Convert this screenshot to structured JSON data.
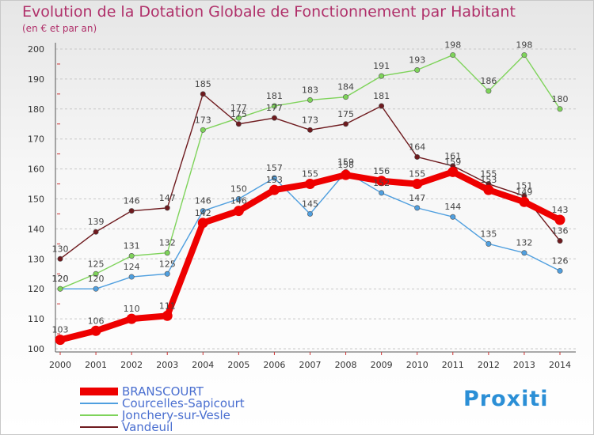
{
  "header": {
    "title": "Evolution de la Dotation Globale de Fonctionnement par Habitant",
    "subtitle": "(en € et par an)"
  },
  "branding": {
    "logo_text": "Proxiti"
  },
  "chart_data": {
    "type": "line",
    "title": "Evolution de la Dotation Globale de Fonctionnement par Habitant",
    "subtitle": "(en € et par an)",
    "xlabel": "",
    "ylabel": "",
    "ylim": [
      100,
      200
    ],
    "yticks": [
      100,
      110,
      120,
      130,
      140,
      150,
      160,
      170,
      180,
      190,
      200
    ],
    "categories": [
      "2000",
      "2001",
      "2002",
      "2003",
      "2004",
      "2005",
      "2006",
      "2007",
      "2008",
      "2009",
      "2010",
      "2011",
      "2012",
      "2013",
      "2014"
    ],
    "grid": "horizontal-dashed",
    "legend_position": "bottom-left",
    "series": [
      {
        "name": "BRANSCOURT",
        "color": "#ee0000",
        "emphasis": true,
        "values": [
          103,
          106,
          110,
          111,
          142,
          146,
          153,
          155,
          158,
          156,
          155,
          159,
          153,
          149,
          143
        ],
        "labels": [
          "103",
          "106",
          "110",
          "111",
          "142",
          "146",
          "153",
          "155",
          "158",
          "156",
          "155",
          "159",
          "153",
          "149",
          "143"
        ]
      },
      {
        "name": "Courcelles-Sapicourt",
        "color": "#4f9fdf",
        "values": [
          120,
          120,
          124,
          125,
          146,
          150,
          157,
          145,
          159,
          152,
          147,
          144,
          135,
          132,
          126
        ],
        "labels": [
          "120",
          "120",
          "124",
          "125",
          "146",
          "150",
          "157",
          "145",
          "159",
          "152",
          "147",
          "144",
          "135",
          "132",
          "126"
        ]
      },
      {
        "name": "Jonchery-sur-Vesle",
        "color": "#7ed35a",
        "values": [
          120,
          125,
          131,
          132,
          173,
          177,
          181,
          183,
          184,
          191,
          193,
          198,
          186,
          198,
          180
        ],
        "labels": [
          "120",
          "125",
          "131",
          "132",
          "173",
          "177",
          "181",
          "183",
          "184",
          "191",
          "193",
          "198",
          "186",
          "198",
          "180"
        ]
      },
      {
        "name": "Vandeuil",
        "color": "#6e1a1e",
        "values": [
          130,
          139,
          146,
          147,
          185,
          175,
          177,
          173,
          175,
          181,
          164,
          161,
          155,
          151,
          136
        ],
        "labels": [
          "130",
          "139",
          "146",
          "147",
          "185",
          "175",
          "177",
          "173",
          "175",
          "181",
          "164",
          "161",
          "155",
          "151",
          "136"
        ]
      }
    ]
  }
}
